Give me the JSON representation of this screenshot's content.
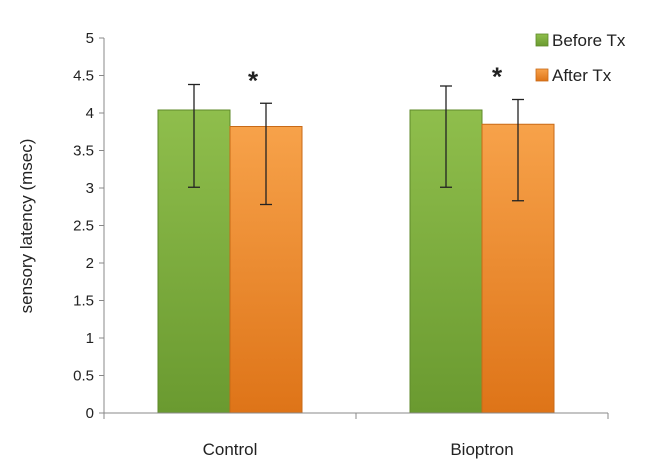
{
  "chart_data": {
    "type": "bar",
    "title": "",
    "xlabel": "",
    "ylabel": "sensory latency (msec)",
    "ylim": [
      0,
      5
    ],
    "yticks": [
      0,
      0.5,
      1,
      1.5,
      2,
      2.5,
      3,
      3.5,
      4,
      4.5,
      5
    ],
    "ytick_labels": [
      "0",
      "0.5",
      "1",
      "1.5",
      "2",
      "2.5",
      "3",
      "3.5",
      "4",
      "4.5",
      "5"
    ],
    "grid": false,
    "legend_position": "top-right",
    "categories": [
      "Control",
      "Bioptron"
    ],
    "series": [
      {
        "name": "Before Tx",
        "color": "#7aa83a",
        "values": [
          4.04,
          4.04
        ],
        "error_low": [
          3.01,
          3.01
        ],
        "error_high": [
          4.38,
          4.36
        ]
      },
      {
        "name": "After Tx",
        "color": "#ee8a2c",
        "values": [
          3.82,
          3.85
        ],
        "error_low": [
          2.78,
          2.83
        ],
        "error_high": [
          4.13,
          4.18
        ]
      }
    ],
    "annotations": [
      {
        "text": "*",
        "category": "Control",
        "series": "After Tx"
      },
      {
        "text": "*",
        "category": "Bioptron",
        "series": "After Tx"
      }
    ]
  }
}
